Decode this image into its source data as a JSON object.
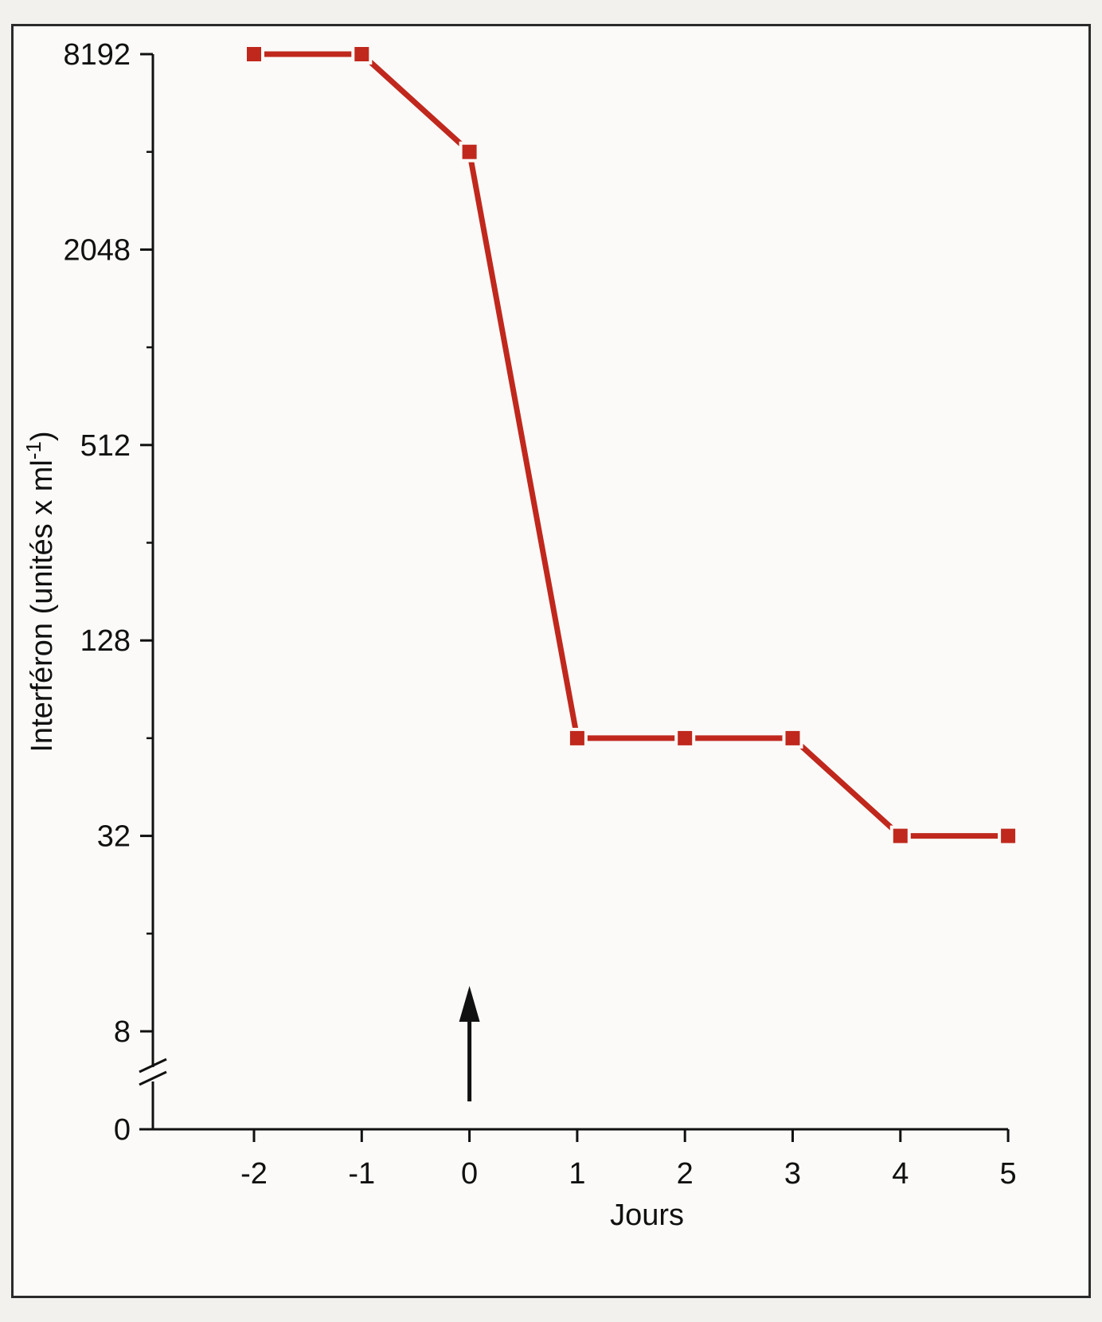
{
  "chart_data": {
    "type": "line",
    "title": "",
    "xlabel": "Jours",
    "ylabel": "Interféron (unités x ml",
    "ylabel_superscript": "-1",
    "ylabel_close": ")",
    "y_scale": "log2",
    "y_axis_break": true,
    "x_ticks": [
      -2,
      -1,
      0,
      1,
      2,
      3,
      4,
      5
    ],
    "y_ticks": [
      {
        "value": 0,
        "label": "0"
      },
      {
        "value": 8,
        "label": "8"
      },
      {
        "value": 32,
        "label": "32"
      },
      {
        "value": 128,
        "label": "128"
      },
      {
        "value": 512,
        "label": "512"
      },
      {
        "value": 2048,
        "label": "2048"
      },
      {
        "value": 8192,
        "label": "8192"
      }
    ],
    "y_minor_ticks": [
      16,
      64,
      256,
      1024,
      4096
    ],
    "series": [
      {
        "color": "#c0281d",
        "x": [
          -2,
          -1,
          0,
          1,
          2,
          3,
          4,
          5
        ],
        "y": [
          8192,
          8192,
          4096,
          64,
          64,
          64,
          32,
          32
        ]
      }
    ],
    "annotations": [
      {
        "type": "arrow",
        "x": 0,
        "direction": "up"
      }
    ],
    "grid": false,
    "legend": "none"
  }
}
